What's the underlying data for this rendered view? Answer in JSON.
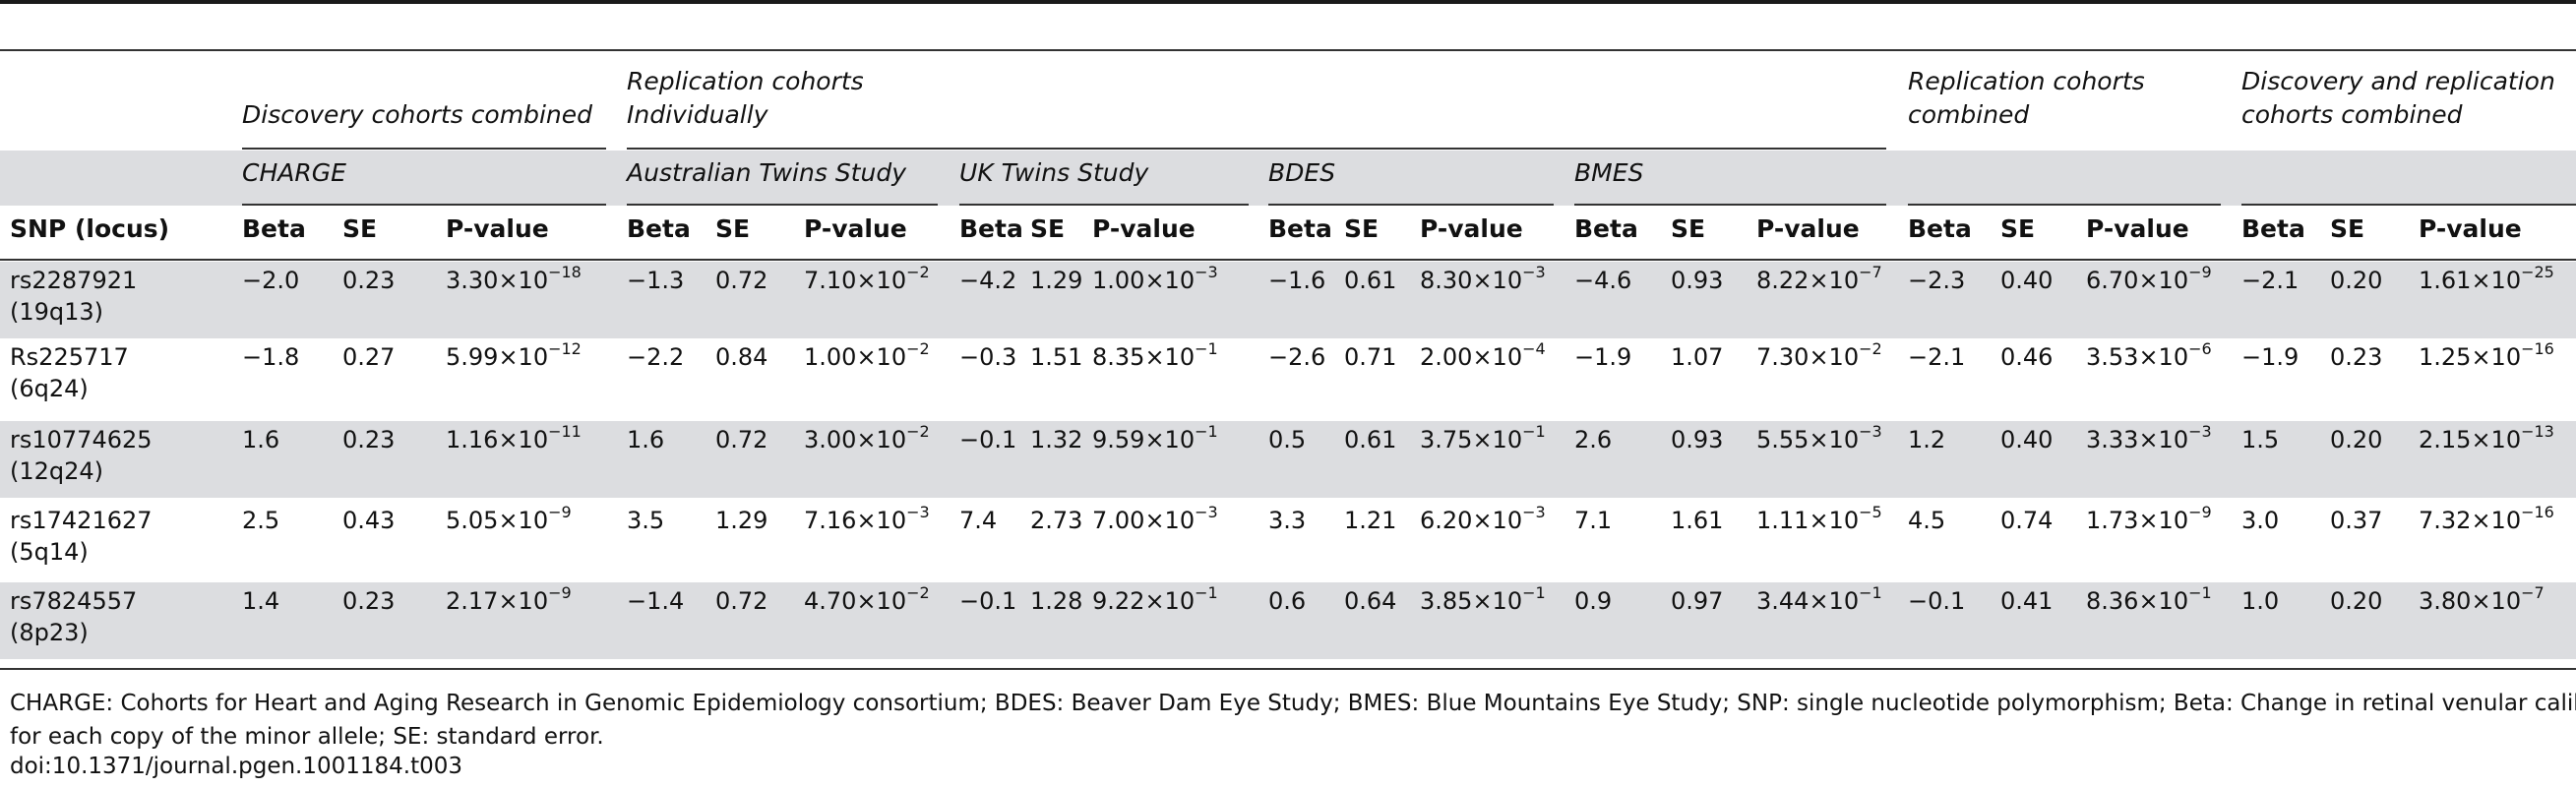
{
  "group_headers": {
    "discovery_combined": "Discovery cohorts combined",
    "replication_individually_line1": "Replication cohorts",
    "replication_individually_line2": "Individually",
    "replication_combined_line1": "Replication cohorts",
    "replication_combined_line2": "combined",
    "disc_repl_combined_line1": "Discovery and replication",
    "disc_repl_combined_line2": "cohorts combined"
  },
  "cohorts": {
    "charge": "CHARGE",
    "australian_twins": "Australian Twins Study",
    "uk_twins": "UK Twins Study",
    "bdes": "BDES",
    "bmes": "BMES"
  },
  "columns": {
    "snp": "SNP (locus)",
    "beta": "Beta",
    "se": "SE",
    "pvalue": "P-value"
  },
  "rows": [
    {
      "snp": "rs2287921",
      "locus": "(19q13)",
      "cells": [
        {
          "beta": "−2.0",
          "se": "0.23",
          "m": "3.30",
          "e": "−18"
        },
        {
          "beta": "−1.3",
          "se": "0.72",
          "m": "7.10",
          "e": "−2"
        },
        {
          "beta": "−4.2",
          "se": "1.29",
          "m": "1.00",
          "e": "−3"
        },
        {
          "beta": "−1.6",
          "se": "0.61",
          "m": "8.30",
          "e": "−3"
        },
        {
          "beta": "−4.6",
          "se": "0.93",
          "m": "8.22",
          "e": "−7"
        },
        {
          "beta": "−2.3",
          "se": "0.40",
          "m": "6.70",
          "e": "−9"
        },
        {
          "beta": "−2.1",
          "se": "0.20",
          "m": "1.61",
          "e": "−25"
        }
      ]
    },
    {
      "snp": "Rs225717",
      "locus": "(6q24)",
      "cells": [
        {
          "beta": "−1.8",
          "se": "0.27",
          "m": "5.99",
          "e": "−12"
        },
        {
          "beta": "−2.2",
          "se": "0.84",
          "m": "1.00",
          "e": "−2"
        },
        {
          "beta": "−0.3",
          "se": "1.51",
          "m": "8.35",
          "e": "−1"
        },
        {
          "beta": "−2.6",
          "se": "0.71",
          "m": "2.00",
          "e": "−4"
        },
        {
          "beta": "−1.9",
          "se": "1.07",
          "m": "7.30",
          "e": "−2"
        },
        {
          "beta": "−2.1",
          "se": "0.46",
          "m": "3.53",
          "e": "−6"
        },
        {
          "beta": "−1.9",
          "se": "0.23",
          "m": "1.25",
          "e": "−16"
        }
      ]
    },
    {
      "snp": "rs10774625",
      "locus": "(12q24)",
      "cells": [
        {
          "beta": "1.6",
          "se": "0.23",
          "m": "1.16",
          "e": "−11"
        },
        {
          "beta": "1.6",
          "se": "0.72",
          "m": "3.00",
          "e": "−2"
        },
        {
          "beta": "−0.1",
          "se": "1.32",
          "m": "9.59",
          "e": "−1"
        },
        {
          "beta": "0.5",
          "se": "0.61",
          "m": "3.75",
          "e": "−1"
        },
        {
          "beta": "2.6",
          "se": "0.93",
          "m": "5.55",
          "e": "−3"
        },
        {
          "beta": "1.2",
          "se": "0.40",
          "m": "3.33",
          "e": "−3"
        },
        {
          "beta": "1.5",
          "se": "0.20",
          "m": "2.15",
          "e": "−13"
        }
      ]
    },
    {
      "snp": "rs17421627",
      "locus": "(5q14)",
      "cells": [
        {
          "beta": "2.5",
          "se": "0.43",
          "m": "5.05",
          "e": "−9"
        },
        {
          "beta": "3.5",
          "se": "1.29",
          "m": "7.16",
          "e": "−3"
        },
        {
          "beta": "7.4",
          "se": "2.73",
          "m": "7.00",
          "e": "−3"
        },
        {
          "beta": "3.3",
          "se": "1.21",
          "m": "6.20",
          "e": "−3"
        },
        {
          "beta": "7.1",
          "se": "1.61",
          "m": "1.11",
          "e": "−5"
        },
        {
          "beta": "4.5",
          "se": "0.74",
          "m": "1.73",
          "e": "−9"
        },
        {
          "beta": "3.0",
          "se": "0.37",
          "m": "7.32",
          "e": "−16"
        }
      ]
    },
    {
      "snp": "rs7824557",
      "locus": "(8p23)",
      "cells": [
        {
          "beta": "1.4",
          "se": "0.23",
          "m": "2.17",
          "e": "−9"
        },
        {
          "beta": "−1.4",
          "se": "0.72",
          "m": "4.70",
          "e": "−2"
        },
        {
          "beta": "−0.1",
          "se": "1.28",
          "m": "9.22",
          "e": "−1"
        },
        {
          "beta": "0.6",
          "se": "0.64",
          "m": "3.85",
          "e": "−1"
        },
        {
          "beta": "0.9",
          "se": "0.97",
          "m": "3.44",
          "e": "−1"
        },
        {
          "beta": "−0.1",
          "se": "0.41",
          "m": "8.36",
          "e": "−1"
        },
        {
          "beta": "1.0",
          "se": "0.20",
          "m": "3.80",
          "e": "−7"
        }
      ]
    }
  ],
  "footnotes": {
    "line1": "CHARGE: Cohorts for Heart and Aging Research in Genomic Epidemiology consortium; BDES: Beaver Dam Eye Study; BMES: Blue Mountains Eye Study; SNP: single nucleotide polymorphism; Beta: Change in retinal venular caliber",
    "line2": "for each copy of the minor allele; SE: standard error.",
    "doi": "doi:10.1371/journal.pgen.1001184.t003"
  }
}
